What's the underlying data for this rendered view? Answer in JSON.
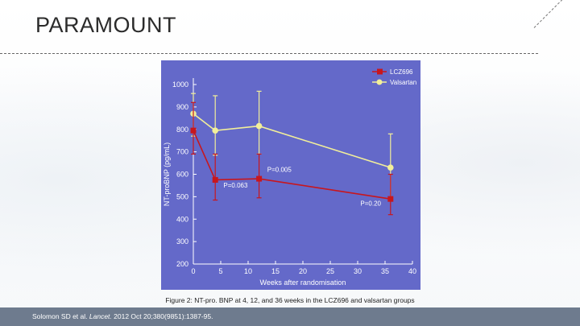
{
  "slide": {
    "title": "PARAMOUNT",
    "caption": "Figure 2: NT-pro. BNP at 4, 12, and 36 weeks in the LCZ696 and valsartan groups",
    "reference": {
      "authors": "Solomon SD et al.",
      "journal": "Lancet.",
      "details": "2012 Oct 20;380(9851):1387-95."
    }
  },
  "colors": {
    "panel_bg": "#6469c9",
    "axis": "#ffffff",
    "lcz696": "#c8161d",
    "valsartan": "#f2ef9a"
  },
  "chart_data": {
    "type": "line",
    "xlabel": "Weeks after randomisation",
    "ylabel": "NT-proBNP (pg/mL)",
    "xlim": [
      0,
      40
    ],
    "ylim": [
      200,
      1000
    ],
    "xticks": [
      0,
      5,
      10,
      15,
      20,
      25,
      30,
      35,
      40
    ],
    "yticks": [
      200,
      300,
      400,
      500,
      600,
      700,
      800,
      900,
      1000
    ],
    "legend_position": "top-right",
    "series": [
      {
        "name": "LCZ696",
        "color": "#c8161d",
        "marker": "square",
        "x": [
          0,
          4,
          12,
          36
        ],
        "y": [
          795,
          575,
          580,
          490
        ],
        "err_low": [
          690,
          485,
          495,
          420
        ],
        "err_high": [
          920,
          690,
          690,
          600
        ]
      },
      {
        "name": "Valsartan",
        "color": "#f2ef9a",
        "marker": "circle",
        "x": [
          0,
          4,
          12,
          36
        ],
        "y": [
          870,
          795,
          815,
          630
        ],
        "err_low": [
          770,
          685,
          690,
          490
        ],
        "err_high": [
          960,
          950,
          970,
          780
        ]
      }
    ],
    "annotations": [
      {
        "text": "P=0.063",
        "x": 5.5,
        "y": 540
      },
      {
        "text": "P=0.005",
        "x": 13.5,
        "y": 610
      },
      {
        "text": "P=0.20",
        "x": 30.5,
        "y": 460
      }
    ]
  }
}
